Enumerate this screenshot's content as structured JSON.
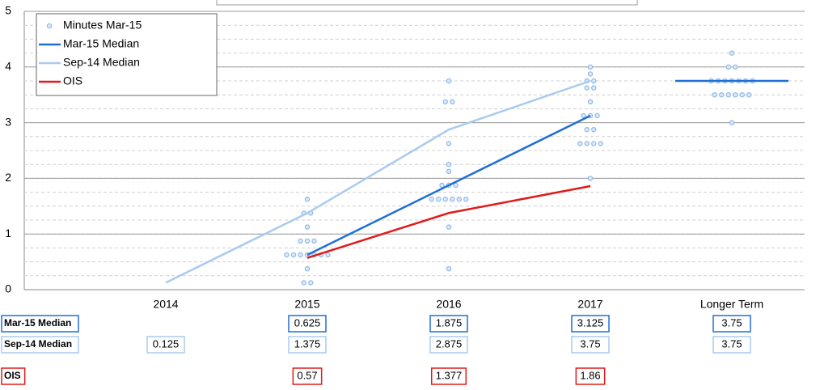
{
  "chart_data": {
    "type": "dot-plot",
    "categories": [
      "2014",
      "2015",
      "2016",
      "2017",
      "Longer Term"
    ],
    "ylim": [
      0,
      5
    ],
    "yticks": [
      0,
      1,
      2,
      3,
      4,
      5
    ],
    "grid": true,
    "minor_grid_step": 0.25,
    "legend": "top-left",
    "series": [
      {
        "name": "Minutes Mar-15",
        "type": "scatter",
        "color": "#8fb8e8",
        "values": [
          [],
          [
            1.625,
            1.375,
            1.375,
            1.125,
            0.875,
            0.875,
            0.875,
            0.625,
            0.625,
            0.625,
            0.625,
            0.625,
            0.625,
            0.625,
            0.375,
            0.125,
            0.125
          ],
          [
            3.75,
            3.375,
            3.375,
            2.625,
            2.25,
            2.125,
            1.875,
            1.875,
            1.875,
            1.625,
            1.625,
            1.625,
            1.625,
            1.625,
            1.625,
            1.125,
            0.375
          ],
          [
            4.0,
            3.875,
            3.75,
            3.75,
            3.625,
            3.625,
            3.375,
            3.125,
            3.125,
            3.125,
            2.875,
            2.875,
            2.625,
            2.625,
            2.625,
            2.625,
            2.0
          ],
          [
            4.25,
            4.0,
            4.0,
            3.75,
            3.75,
            3.75,
            3.75,
            3.75,
            3.75,
            3.75,
            3.5,
            3.5,
            3.5,
            3.5,
            3.5,
            3.5,
            3.0
          ]
        ]
      },
      {
        "name": "Mar-15 Median",
        "type": "line",
        "color": "#1f6fd8",
        "longer_term_mark": true,
        "values": [
          null,
          0.625,
          1.875,
          3.125,
          3.75
        ]
      },
      {
        "name": "Sep-14 Median",
        "type": "line",
        "color": "#a9cbf0",
        "longer_term_mark": false,
        "values": [
          0.125,
          1.375,
          2.875,
          3.75,
          3.75
        ]
      },
      {
        "name": "OIS",
        "type": "line",
        "color": "#e01b1b",
        "longer_term_mark": false,
        "values": [
          null,
          0.57,
          1.377,
          1.86,
          null
        ]
      }
    ]
  }
}
